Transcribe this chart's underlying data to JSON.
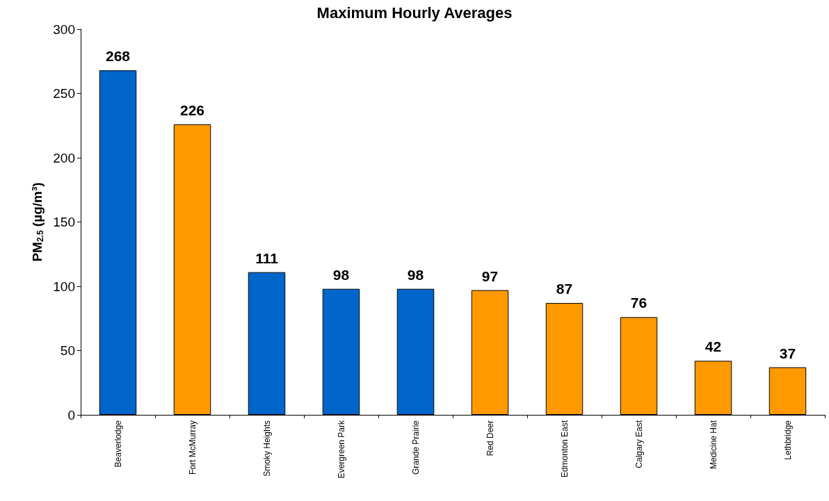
{
  "chart_data": {
    "type": "bar",
    "title": "Maximum Hourly Averages",
    "categories": [
      "Beaverlodge",
      "Fort McMurray",
      "Smoky Heights",
      "Evergreen Park",
      "Grande Prairie",
      "Red Deer",
      "Edmonton East",
      "Calgary East",
      "Medicine Hat",
      "Lethbridge"
    ],
    "values": [
      268,
      226,
      111,
      98,
      98,
      97,
      87,
      76,
      42,
      37
    ],
    "colors": [
      "#0066cc",
      "#ff9900",
      "#0066cc",
      "#0066cc",
      "#0066cc",
      "#ff9900",
      "#ff9900",
      "#ff9900",
      "#ff9900",
      "#ff9900"
    ],
    "ylabel": "PM$_{2.5}$ (µg/m³)",
    "ylim": [
      0,
      300
    ],
    "yticks": [
      0,
      50,
      100,
      150,
      200,
      250,
      300
    ],
    "data_labels": true,
    "grid": false
  }
}
